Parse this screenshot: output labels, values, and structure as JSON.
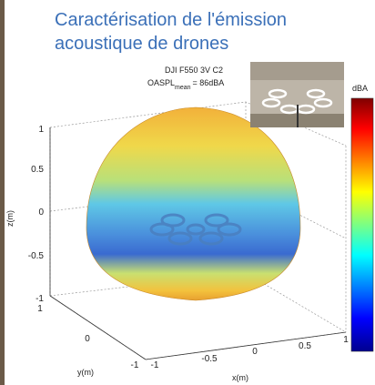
{
  "header": {
    "title_lines": [
      "Caractérisation de l'émission",
      "acoustique de drones"
    ]
  },
  "plot": {
    "annotation": {
      "line1": "DJI F550 3V C2",
      "oaspl": "OASPL",
      "oaspl_sub": "mean",
      "oaspl_value": "= 86dBA"
    },
    "colorbar_label": "dBA",
    "z_axis": {
      "label": "z(m)",
      "ticks": [
        "1",
        "0.5",
        "0",
        "-0.5",
        "-1"
      ]
    },
    "y_axis": {
      "label": "y(m)",
      "ticks": [
        "1",
        "0",
        "-1"
      ]
    },
    "x_axis": {
      "label": "x(m)",
      "ticks": [
        "-1",
        "-0.5",
        "0",
        "0.5",
        "1"
      ]
    }
  }
}
